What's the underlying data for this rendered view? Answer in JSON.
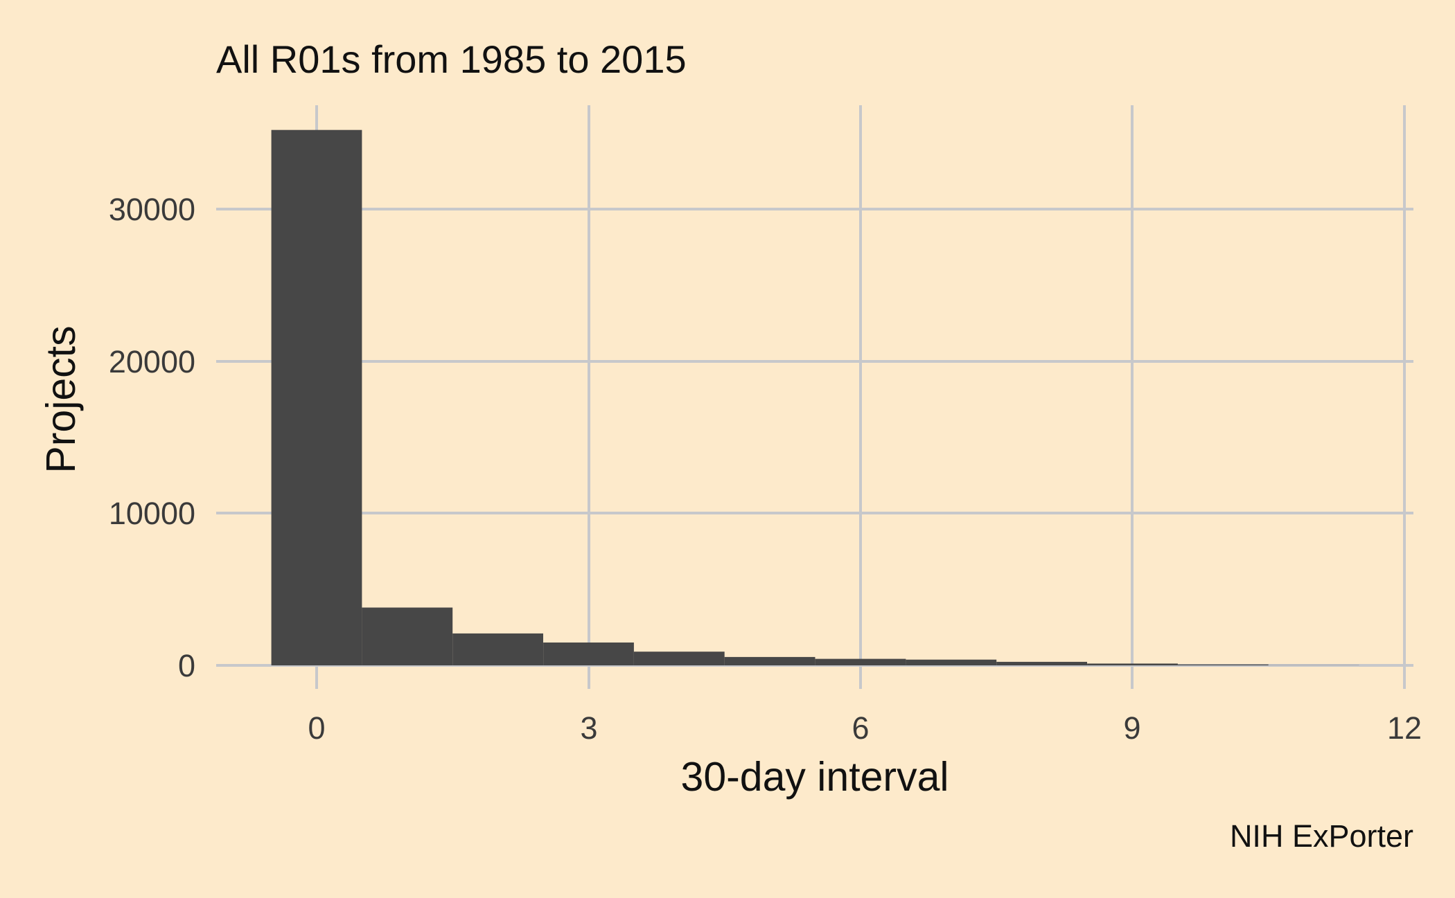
{
  "chart_data": {
    "type": "bar",
    "title": "All R01s from 1985 to 2015",
    "xlabel": "30-day interval",
    "ylabel": "Projects",
    "caption": "NIH ExPorter",
    "x": [
      0,
      1,
      2,
      3,
      4,
      5,
      6,
      7,
      8,
      9,
      10,
      11
    ],
    "values": [
      35200,
      3800,
      2100,
      1500,
      900,
      550,
      430,
      380,
      230,
      120,
      60,
      10
    ],
    "x_ticks": [
      "0",
      "3",
      "6",
      "9",
      "12"
    ],
    "y_ticks": [
      "0",
      "10000",
      "20000",
      "30000"
    ],
    "xlim": [
      -0.7,
      12.1
    ],
    "ylim": [
      0,
      36500
    ],
    "grid": true,
    "legend": "none",
    "colors": {
      "background": "#fdeacb",
      "bar": "#474747",
      "grid": "#c7c8cb"
    }
  }
}
